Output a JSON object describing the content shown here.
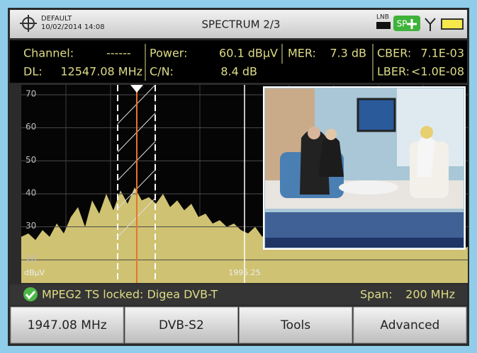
{
  "header": {
    "profile": "DEFAULT",
    "datetime": "10/02/2014 14:08",
    "title": "SPECTRUM 2/3",
    "lnb": "LNB",
    "sp": "SP"
  },
  "measurements": {
    "channel": {
      "label": "Channel:",
      "value": "------"
    },
    "dl": {
      "label": "DL:",
      "value": "12547.08 MHz"
    },
    "power": {
      "label": "Power:",
      "value": "60.1 dBµV"
    },
    "cn": {
      "label": "C/N:",
      "value": "8.4 dB"
    },
    "mer": {
      "label": "MER:",
      "value": "7.3 dB"
    },
    "cber": {
      "label": "CBER:",
      "value": "7.1E-03"
    },
    "lber": {
      "label": "LBER:",
      "value": "<1.0E-08"
    }
  },
  "spectrum": {
    "type": "area",
    "unit": "dBµV",
    "cursor_label": "1995.25",
    "ylim": [
      13,
      73
    ],
    "yticks": [
      20,
      30,
      40,
      50,
      60,
      70
    ],
    "grid": true,
    "color": "#cfc272",
    "values": [
      27,
      28,
      26,
      29,
      27,
      31,
      28,
      33,
      36,
      30,
      38,
      34,
      40,
      35,
      41,
      37,
      42,
      38,
      39,
      37,
      40,
      36,
      38,
      35,
      37,
      33,
      34,
      31,
      32,
      30,
      31,
      29,
      28,
      30,
      27,
      29,
      28,
      27,
      28,
      26,
      27,
      28,
      26,
      27,
      25,
      26,
      27,
      25,
      26,
      26,
      25,
      27,
      26,
      25,
      26,
      24,
      25,
      26,
      25,
      24,
      25,
      24,
      23,
      24
    ]
  },
  "status": {
    "lock": "MPEG2 TS locked: Digea DVB-T",
    "span_label": "Span:",
    "span_value": "200 MHz"
  },
  "buttons": [
    "1947.08 MHz",
    "DVB-S2",
    "Tools",
    "Advanced"
  ]
}
